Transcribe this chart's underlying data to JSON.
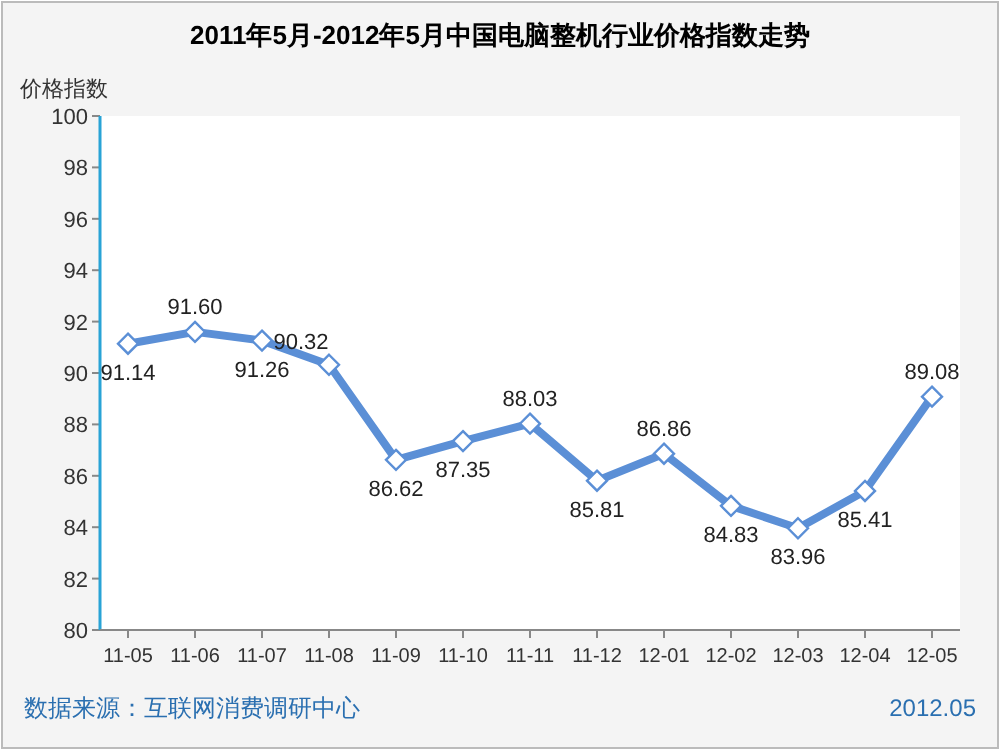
{
  "chart_data": {
    "type": "line",
    "title": "2011年5月-2012年5月中国电脑整机行业价格指数走势",
    "ylabel": "价格指数",
    "categories": [
      "11-05",
      "11-06",
      "11-07",
      "11-08",
      "11-09",
      "11-10",
      "11-11",
      "11-12",
      "12-01",
      "12-02",
      "12-03",
      "12-04",
      "12-05"
    ],
    "values": [
      91.14,
      91.6,
      91.26,
      90.32,
      86.62,
      87.35,
      88.03,
      85.81,
      86.86,
      84.83,
      83.96,
      85.41,
      89.08
    ],
    "color": "#5b8fd6",
    "ylim": [
      80,
      100
    ],
    "yticks": [
      80,
      82,
      84,
      86,
      88,
      90,
      92,
      94,
      96,
      98,
      100
    ],
    "value_labels": [
      "91.14",
      "91.60",
      "91.26",
      "90.32",
      "86.62",
      "87.35",
      "88.03",
      "85.81",
      "86.86",
      "84.83",
      "83.96",
      "85.41",
      "89.08"
    ],
    "grid": false,
    "marker": "diamond",
    "annotations": [
      "数据来源：互联网消费调研中心",
      "2012.05"
    ]
  }
}
